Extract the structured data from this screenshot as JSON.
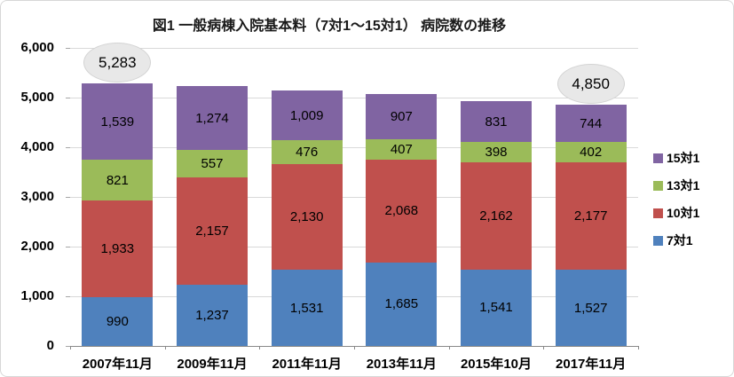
{
  "chart_data": {
    "type": "bar",
    "stacked": true,
    "title": "図1 一般病棟入院基本料（7対1～15対1） 病院数の推移",
    "categories": [
      "2007年11月",
      "2009年11月",
      "2011年11月",
      "2013年11月",
      "2015年10月",
      "2017年11月"
    ],
    "series": [
      {
        "name": "7対1",
        "color": "#4F81BD",
        "values": [
          990,
          1237,
          1531,
          1685,
          1541,
          1527
        ]
      },
      {
        "name": "10対1",
        "color": "#C0504D",
        "values": [
          1933,
          2157,
          2130,
          2068,
          2162,
          2177
        ]
      },
      {
        "name": "13対1",
        "color": "#9BBB59",
        "values": [
          821,
          557,
          476,
          407,
          398,
          402
        ]
      },
      {
        "name": "15対1",
        "color": "#8064A2",
        "values": [
          1539,
          1274,
          1009,
          907,
          831,
          744
        ]
      }
    ],
    "totals": [
      5283,
      5225,
      5146,
      5067,
      4932,
      4850
    ],
    "ylim": [
      0,
      6000
    ],
    "y_tick_labels": [
      "0",
      "1,000",
      "2,000",
      "3,000",
      "4,000",
      "5,000",
      "6,000"
    ],
    "grid": true,
    "legend_position": "right",
    "legend_order": [
      "15対1",
      "13対1",
      "10対1",
      "7対1"
    ],
    "annotations": [
      {
        "text": "5,283",
        "value": 5283,
        "category": "2007年11月",
        "category_index": 0
      },
      {
        "text": "4,850",
        "value": 4850,
        "category": "2017年11月",
        "category_index": 5
      }
    ],
    "colors": {
      "gridline": "#d9d9d9",
      "axis": "#898989",
      "callout_fill": "#e8e8e8",
      "text": "#000000"
    }
  }
}
